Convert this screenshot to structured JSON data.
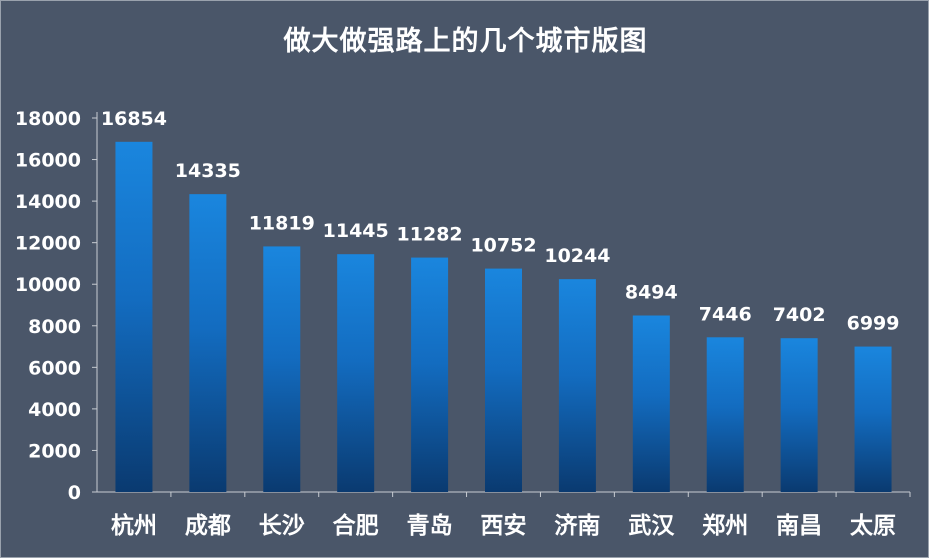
{
  "chart_data": {
    "type": "bar",
    "title": "做大做强路上的几个城市版图",
    "categories": [
      "杭州",
      "成都",
      "长沙",
      "合肥",
      "青岛",
      "西安",
      "济南",
      "武汉",
      "郑州",
      "南昌",
      "太原"
    ],
    "values": [
      16854,
      14335,
      11819,
      11445,
      11282,
      10752,
      10244,
      8494,
      7446,
      7402,
      6999
    ],
    "ylim": [
      0,
      18000
    ],
    "yticks": [
      0,
      2000,
      4000,
      6000,
      8000,
      10000,
      12000,
      14000,
      16000,
      18000
    ],
    "grid": false,
    "legend": "none",
    "colors": {
      "background": "#4a5669",
      "bar_top": "#1a86de",
      "bar_bottom": "#0a3a70",
      "text": "#ffffff"
    }
  }
}
